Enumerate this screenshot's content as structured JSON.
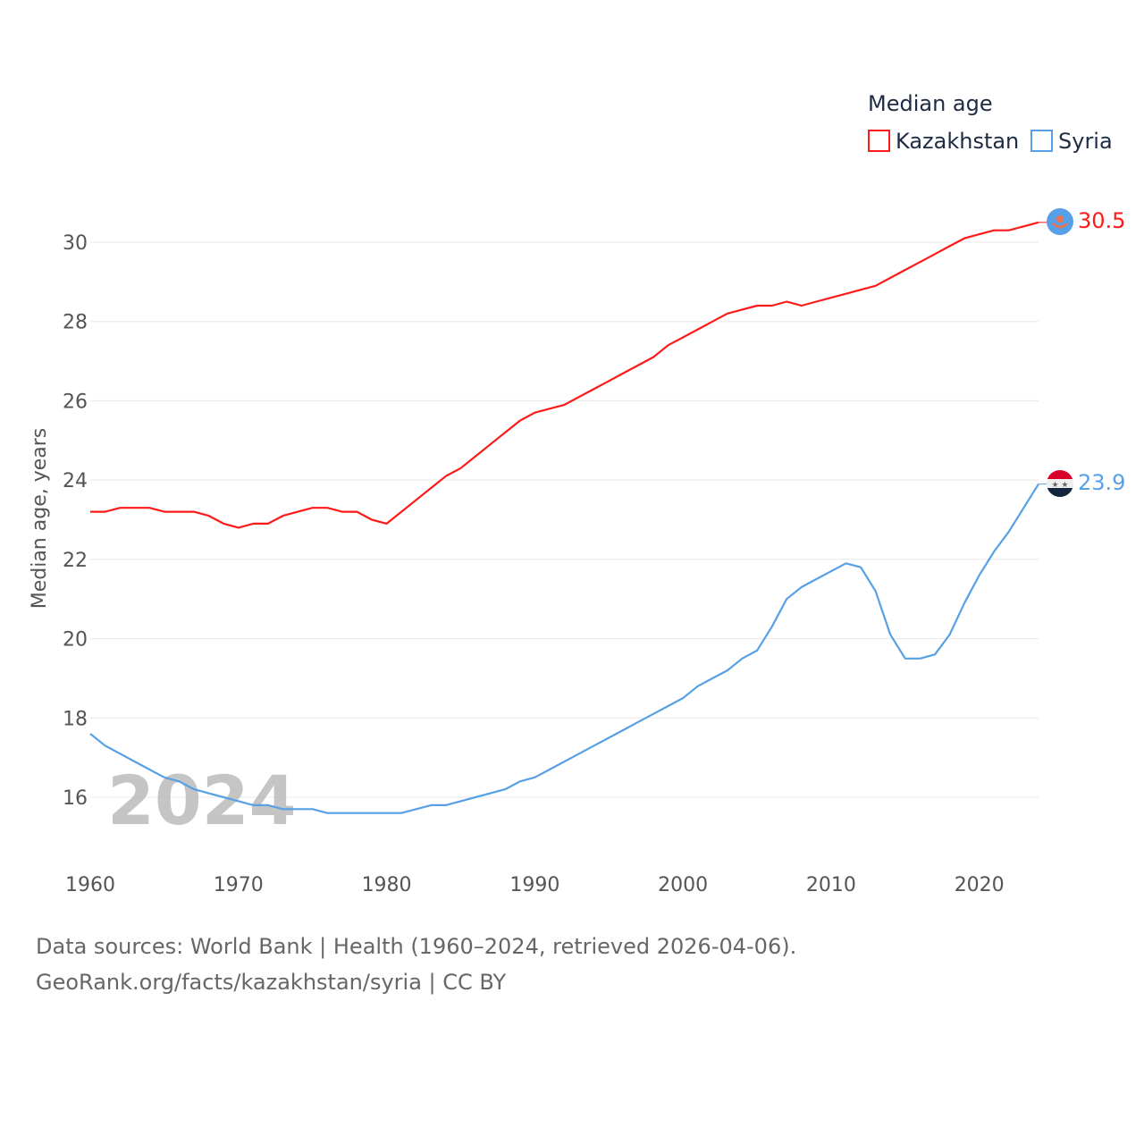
{
  "chart_data": {
    "type": "line",
    "title": "Median age",
    "xlabel": "",
    "ylabel": "Median age, years",
    "xlim": [
      1960,
      2024
    ],
    "ylim": [
      15,
      31
    ],
    "x_ticks": [
      1960,
      1970,
      1980,
      1990,
      2000,
      2010,
      2020
    ],
    "y_ticks": [
      16,
      18,
      20,
      22,
      24,
      26,
      28,
      30
    ],
    "grid": true,
    "legend_placement": "top-right",
    "year_watermark": "2024",
    "x": [
      1960,
      1961,
      1962,
      1963,
      1964,
      1965,
      1966,
      1967,
      1968,
      1969,
      1970,
      1971,
      1972,
      1973,
      1974,
      1975,
      1976,
      1977,
      1978,
      1979,
      1980,
      1981,
      1982,
      1983,
      1984,
      1985,
      1986,
      1987,
      1988,
      1989,
      1990,
      1991,
      1992,
      1993,
      1994,
      1995,
      1996,
      1997,
      1998,
      1999,
      2000,
      2001,
      2002,
      2003,
      2004,
      2005,
      2006,
      2007,
      2008,
      2009,
      2010,
      2011,
      2012,
      2013,
      2014,
      2015,
      2016,
      2017,
      2018,
      2019,
      2020,
      2021,
      2022,
      2023,
      2024
    ],
    "series": [
      {
        "name": "Kazakhstan",
        "color": "#ff1a1a",
        "end_label": "30.5",
        "values": [
          23.2,
          23.2,
          23.3,
          23.3,
          23.3,
          23.2,
          23.2,
          23.2,
          23.1,
          22.9,
          22.8,
          22.9,
          22.9,
          23.1,
          23.2,
          23.3,
          23.3,
          23.2,
          23.2,
          23.0,
          22.9,
          23.2,
          23.5,
          23.8,
          24.1,
          24.3,
          24.6,
          24.9,
          25.2,
          25.5,
          25.7,
          25.8,
          25.9,
          26.1,
          26.3,
          26.5,
          26.7,
          26.9,
          27.1,
          27.4,
          27.6,
          27.8,
          28.0,
          28.2,
          28.3,
          28.4,
          28.4,
          28.5,
          28.4,
          28.5,
          28.6,
          28.7,
          28.8,
          28.9,
          29.1,
          29.3,
          29.5,
          29.7,
          29.9,
          30.1,
          30.2,
          30.3,
          30.3,
          30.4,
          30.5
        ]
      },
      {
        "name": "Syria",
        "color": "#57a0e5",
        "end_label": "23.9",
        "values": [
          17.6,
          17.3,
          17.1,
          16.9,
          16.7,
          16.5,
          16.4,
          16.2,
          16.1,
          16.0,
          15.9,
          15.8,
          15.8,
          15.7,
          15.7,
          15.7,
          15.6,
          15.6,
          15.6,
          15.6,
          15.6,
          15.6,
          15.7,
          15.8,
          15.8,
          15.9,
          16.0,
          16.1,
          16.2,
          16.4,
          16.5,
          16.7,
          16.9,
          17.1,
          17.3,
          17.5,
          17.7,
          17.9,
          18.1,
          18.3,
          18.5,
          18.8,
          19.0,
          19.2,
          19.5,
          19.7,
          20.3,
          21.0,
          21.3,
          21.5,
          21.7,
          21.9,
          21.8,
          21.2,
          20.1,
          19.5,
          19.5,
          19.6,
          20.1,
          20.9,
          21.6,
          22.2,
          22.7,
          23.3,
          23.9
        ]
      }
    ]
  },
  "footer": {
    "line1": "Data sources: World Bank | Health (1960–2024, retrieved 2026-04-06).",
    "line2": "GeoRank.org/facts/kazakhstan/syria | CC BY"
  }
}
